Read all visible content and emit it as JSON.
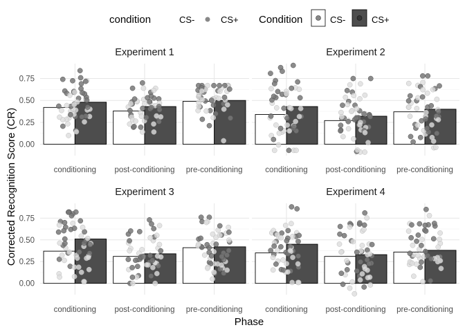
{
  "chart_data": {
    "type": "bar",
    "ylabel": "Corrected Recognition Score (CR)",
    "xlabel": "Phase",
    "categories": [
      "conditioning",
      "post-conditioning",
      "pre-conditioning"
    ],
    "yticks": [
      0.0,
      0.25,
      0.5,
      0.75
    ],
    "ytick_labels": [
      "0.00",
      "0.25",
      "0.50",
      "0.75"
    ],
    "ylim": [
      -0.13,
      0.92
    ],
    "grid": true,
    "legend": {
      "position": "top",
      "groups": [
        {
          "title": "condition",
          "items": [
            {
              "label": "CS-",
              "fill": "#ffffff",
              "symbol": "none"
            },
            {
              "label": "CS+",
              "fill": "#888888",
              "symbol": "point"
            }
          ]
        },
        {
          "title": "Condition",
          "items": [
            {
              "label": "CS-",
              "fill": "#ffffff",
              "symbol": "box"
            },
            {
              "label": "CS+",
              "fill": "#4d4d4d",
              "symbol": "box"
            }
          ]
        }
      ]
    },
    "colors": {
      "cs_minus_bar": "#ffffff",
      "cs_plus_bar": "#4d4d4d",
      "cs_minus_point": "#dddddd",
      "cs_plus_point": "#777777",
      "grid": "#ebebeb"
    },
    "panels": [
      {
        "title": "Experiment 1",
        "series": [
          {
            "name": "CS-",
            "values": [
              0.42,
              0.38,
              0.49
            ]
          },
          {
            "name": "CS+",
            "values": [
              0.48,
              0.43,
              0.5
            ]
          }
        ],
        "spread": {
          "min": [
            0.1,
            0.14,
            0.04
          ],
          "max": [
            0.84,
            0.7,
            0.67
          ]
        }
      },
      {
        "title": "Experiment 2",
        "series": [
          {
            "name": "CS-",
            "values": [
              0.34,
              0.27,
              0.37
            ]
          },
          {
            "name": "CS+",
            "values": [
              0.43,
              0.32,
              0.4
            ]
          }
        ],
        "spread": {
          "min": [
            -0.07,
            -0.09,
            -0.04
          ],
          "max": [
            0.9,
            0.75,
            0.78
          ]
        }
      },
      {
        "title": "Experiment 3",
        "series": [
          {
            "name": "CS-",
            "values": [
              0.37,
              0.31,
              0.41
            ]
          },
          {
            "name": "CS+",
            "values": [
              0.51,
              0.34,
              0.42
            ]
          }
        ],
        "spread": {
          "min": [
            0.02,
            0.0,
            0.05
          ],
          "max": [
            0.82,
            0.73,
            0.76
          ]
        }
      },
      {
        "title": "Experiment 4",
        "series": [
          {
            "name": "CS-",
            "values": [
              0.35,
              0.31,
              0.36
            ]
          },
          {
            "name": "CS+",
            "values": [
              0.45,
              0.33,
              0.38
            ]
          }
        ],
        "spread": {
          "min": [
            0.01,
            -0.12,
            0.02
          ],
          "max": [
            0.88,
            0.81,
            0.85
          ]
        }
      }
    ]
  }
}
